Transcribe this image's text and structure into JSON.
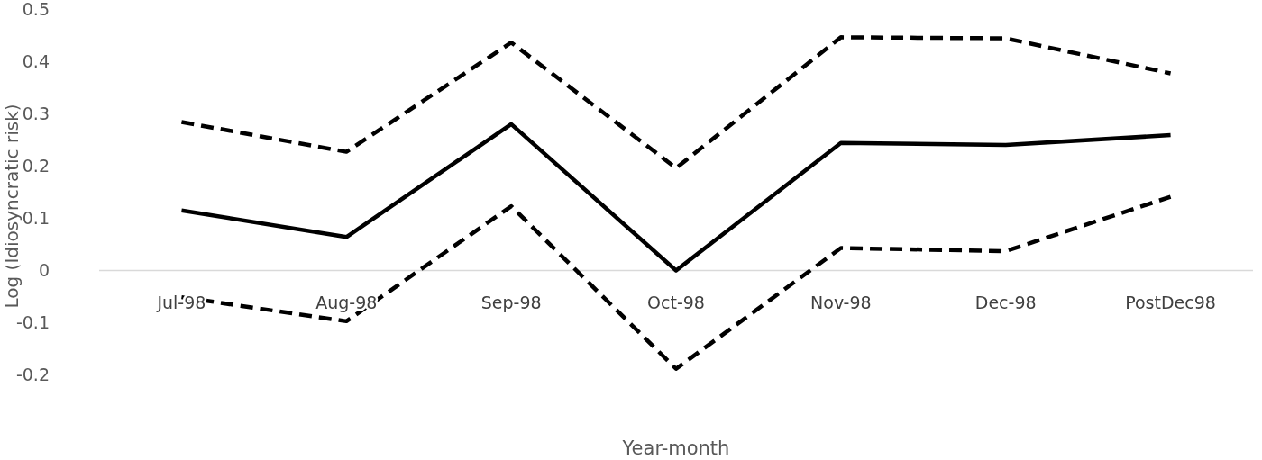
{
  "chart_data": {
    "type": "line",
    "xlabel": "Year-month",
    "ylabel": "Log (Idiosyncratic risk)",
    "categories": [
      "Jul-98",
      "Aug-98",
      "Sep-98",
      "Oct-98",
      "Nov-98",
      "Dec-98",
      "PostDec98"
    ],
    "series": [
      {
        "color": "#000000",
        "line_style": "dashed",
        "values": [
          0.284,
          0.227,
          0.436,
          0.196,
          0.446,
          0.444,
          0.377
        ]
      },
      {
        "color": "#000000",
        "line_style": "solid",
        "values": [
          0.115,
          0.064,
          0.28,
          0.0,
          0.244,
          0.24,
          0.259
        ]
      },
      {
        "color": "#000000",
        "line_style": "dashed",
        "values": [
          -0.051,
          -0.097,
          0.123,
          -0.188,
          0.043,
          0.037,
          0.141
        ]
      }
    ],
    "ylim": [
      -0.2,
      0.5
    ],
    "yticks": [
      -0.2,
      -0.1,
      0,
      0.1,
      0.2,
      0.3,
      0.4,
      0.5
    ],
    "grid": false,
    "marker": "none"
  }
}
